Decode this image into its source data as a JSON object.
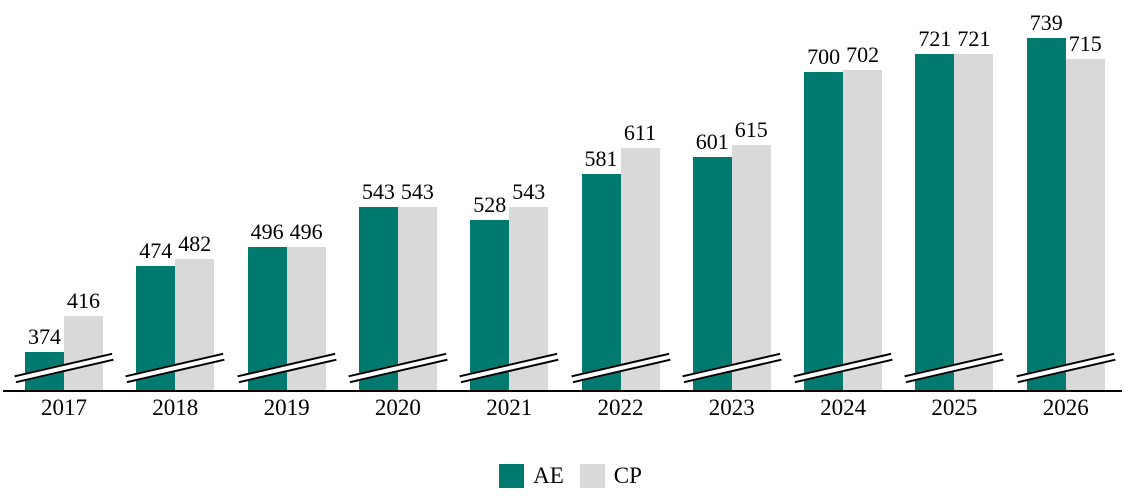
{
  "chart_data": {
    "type": "bar",
    "title": "",
    "xlabel": "",
    "ylabel": "",
    "categories": [
      "2017",
      "2018",
      "2019",
      "2020",
      "2021",
      "2022",
      "2023",
      "2024",
      "2025",
      "2026"
    ],
    "series": [
      {
        "name": "AE",
        "color": "#00796f",
        "values": [
          374,
          474,
          496,
          543,
          528,
          581,
          601,
          700,
          721,
          739
        ]
      },
      {
        "name": "CP",
        "color": "#d9d9d9",
        "values": [
          416,
          482,
          496,
          543,
          543,
          611,
          615,
          702,
          721,
          715
        ]
      }
    ],
    "value_labels_shown": true,
    "axis_break": true,
    "ylim": [
      330,
      760
    ],
    "grid": false,
    "y_axis_shown": false,
    "legend_position": "bottom",
    "colors": {
      "axis_line": "#000000",
      "label_text": "#000000",
      "background": "#ffffff"
    }
  }
}
